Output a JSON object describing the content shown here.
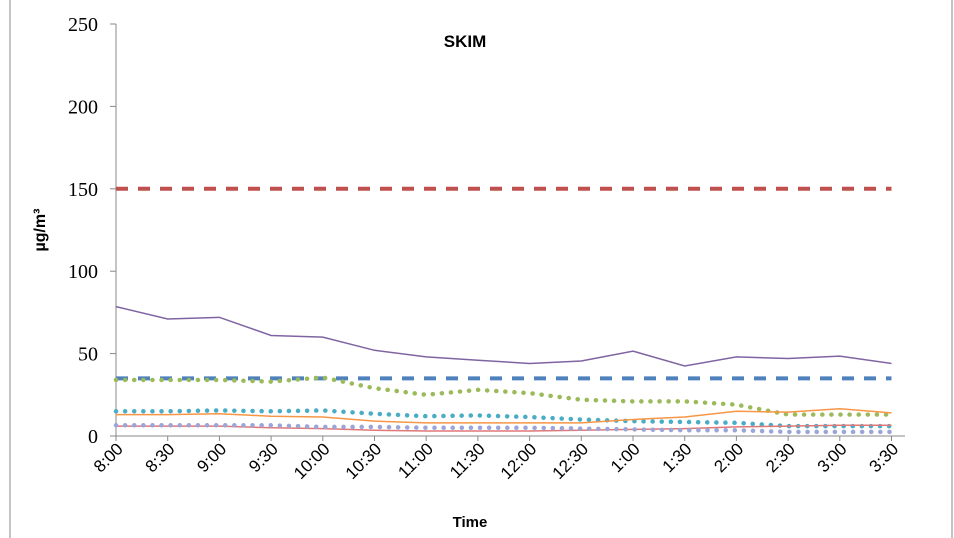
{
  "chart_data": {
    "type": "line",
    "title": "SKIM",
    "x_label": "Time",
    "y_label": "µg/m³",
    "categories": [
      "8:00",
      "8:30",
      "9:00",
      "9:30",
      "10:00",
      "10:30",
      "11:00",
      "11:30",
      "12:00",
      "12:30",
      "1:00",
      "1:30",
      "2:00",
      "2:30",
      "3:00",
      "3:30"
    ],
    "ylim": [
      0,
      250
    ],
    "yticks": [
      0,
      50,
      100,
      150,
      200,
      250
    ],
    "grid": false,
    "series": [
      {
        "color": "#c0504d",
        "dash": "dashed",
        "values": [
          150,
          150,
          150,
          150,
          150,
          150,
          150,
          150,
          150,
          150,
          150,
          150,
          150,
          150,
          150,
          150
        ]
      },
      {
        "color": "#4f81bd",
        "dash": "dashed",
        "values": [
          35,
          35,
          35,
          35,
          35,
          35,
          35,
          35,
          35,
          35,
          35,
          35,
          35,
          35,
          35,
          35
        ]
      },
      {
        "color": "#8064a2",
        "dash": "solid",
        "values": [
          78.5,
          71,
          72,
          61,
          60,
          52,
          48,
          46,
          44,
          45.5,
          51.5,
          42.5,
          48,
          47,
          48.5,
          44
        ]
      },
      {
        "color": "#9bbb59",
        "dash": "dotted",
        "values": [
          34,
          34,
          34,
          33,
          35.5,
          29,
          25,
          28,
          26,
          22,
          21,
          21,
          19,
          13,
          13,
          13
        ]
      },
      {
        "color": "#4bacc6",
        "dash": "dotted",
        "values": [
          15,
          15,
          15.5,
          15,
          15.5,
          13.5,
          12,
          12.5,
          11.5,
          10,
          9,
          8.5,
          8,
          6,
          6,
          6
        ]
      },
      {
        "color": "#f79646",
        "dash": "solid",
        "values": [
          13,
          13,
          13.5,
          12,
          11.5,
          9,
          8,
          8,
          8,
          8,
          10,
          11.5,
          15,
          14.5,
          16.5,
          14
        ]
      },
      {
        "color": "#e07878",
        "dash": "solid",
        "values": [
          6,
          6,
          6,
          5,
          4.5,
          3.5,
          3,
          3,
          3,
          3.5,
          4,
          4.5,
          5.5,
          6,
          6.5,
          6.5
        ]
      },
      {
        "color": "#9aa6d8",
        "dash": "dotted",
        "values": [
          6.5,
          6.5,
          6.5,
          6.5,
          5.5,
          5.5,
          5,
          5,
          5,
          4.5,
          4,
          3.5,
          3.5,
          2.5,
          2.5,
          2.5
        ]
      }
    ]
  }
}
